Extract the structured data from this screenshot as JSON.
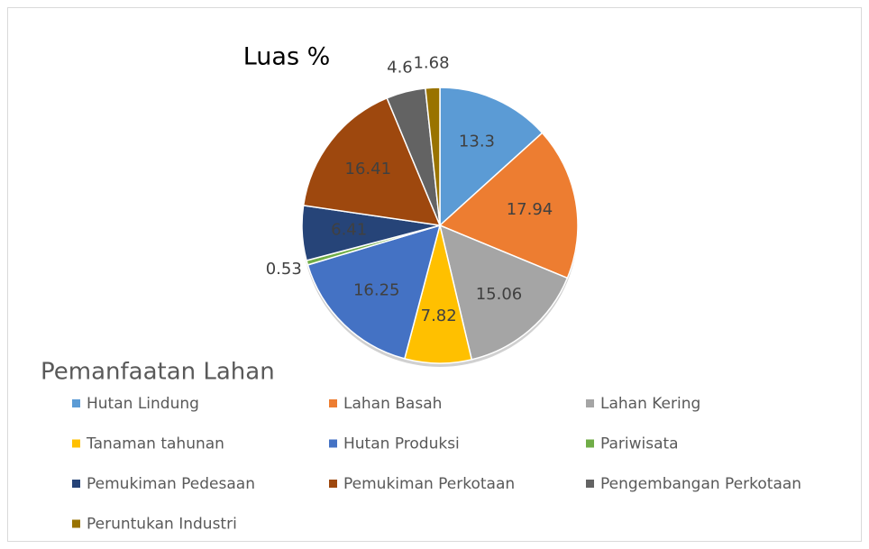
{
  "chart_data": {
    "type": "pie",
    "title": "Luas %",
    "legend_title": "Pemanfaatan Lahan",
    "categories": [
      "Hutan Lindung",
      "Lahan Basah",
      "Lahan Kering",
      "Tanaman tahunan",
      "Hutan Produksi",
      "Pariwisata",
      "Pemukiman Pedesaan",
      "Pemukiman Perkotaan",
      "Pengembangan Perkotaan",
      "Peruntukan Industri"
    ],
    "values": [
      13.3,
      17.94,
      15.06,
      7.82,
      16.25,
      0.53,
      6.41,
      16.41,
      4.6,
      1.68
    ],
    "colors": [
      "#5b9bd5",
      "#ed7d31",
      "#a5a5a5",
      "#ffc000",
      "#4472c4",
      "#70ad47",
      "#264478",
      "#9e480e",
      "#636363",
      "#997300"
    ],
    "legend": "bottom"
  }
}
